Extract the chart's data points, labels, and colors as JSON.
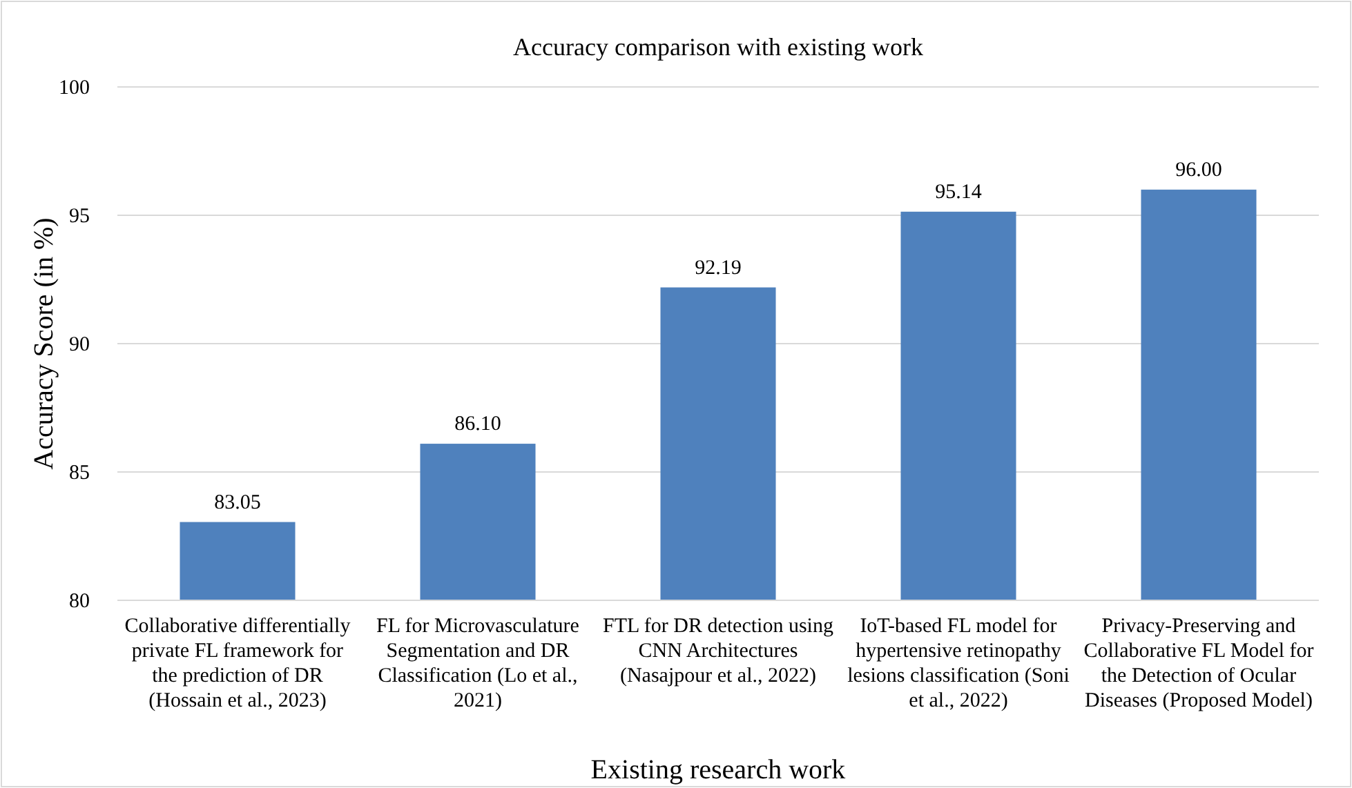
{
  "chart_data": {
    "type": "bar",
    "title": "Accuracy comparison with existing work",
    "xlabel": "Existing research work",
    "ylabel": "Accuracy Score (in %)",
    "categories": [
      "Collaborative differentially private FL framework for the prediction of DR (Hossain et al., 2023)",
      "FL for Microvasculature Segmentation and DR Classification (Lo et al., 2021)",
      "FTL for DR detection using CNN Architectures (Nasajpour et al., 2022)",
      "IoT-based FL model for hypertensive retinopathy lesions classification (Soni et al., 2022)",
      "Privacy-Preserving and Collaborative FL Model for the Detection of Ocular Diseases (Proposed Model)"
    ],
    "values": [
      83.05,
      86.1,
      92.19,
      95.14,
      96.0
    ],
    "value_labels": [
      "83.05",
      "86.10",
      "92.19",
      "95.14",
      "96.00"
    ],
    "color": "#4f81bd",
    "ylim": [
      80,
      100
    ],
    "yticks": [
      80,
      85,
      90,
      95,
      100
    ],
    "grid": "y"
  }
}
